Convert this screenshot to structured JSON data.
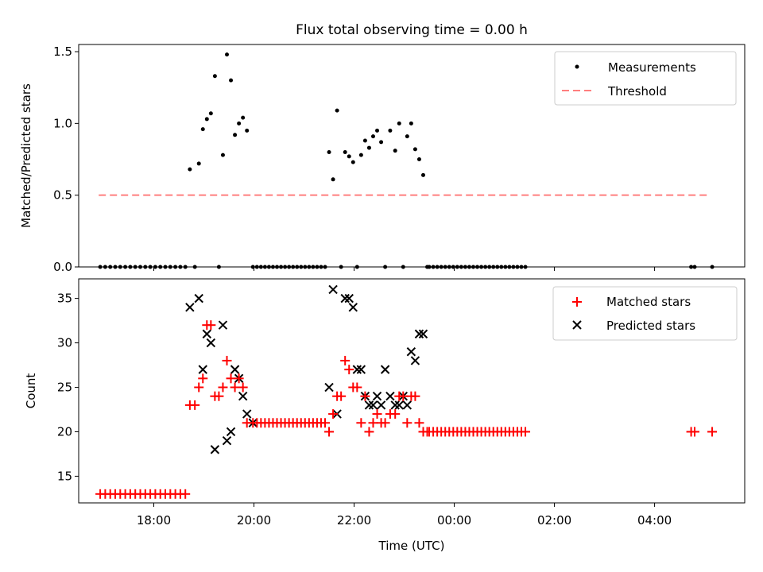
{
  "title": "Flux total observing time = 0.00 h",
  "colors": {
    "measurement": "#000000",
    "threshold": "#ff7f7f",
    "matched": "#ff0000",
    "predicted": "#000000"
  },
  "chart_data": [
    {
      "type": "scatter",
      "panel": "top",
      "title": "Flux total observing time = 0.00 h",
      "xlabel": "",
      "ylabel": "Matched/Predicted stars",
      "x_unit": "hours (UTC, beyond 24 = next day)",
      "xlim": [
        16.5,
        29.8
      ],
      "ylim": [
        0,
        1.55
      ],
      "yticks": [
        0.0,
        0.5,
        1.0,
        1.5
      ],
      "yticklabels": [
        "0.0",
        "0.5",
        "1.0",
        "1.5"
      ],
      "legend": {
        "placement": "top-right",
        "entries": [
          "Measurements",
          "Threshold"
        ]
      },
      "threshold": {
        "name": "Threshold",
        "y": 0.5,
        "x_range": [
          16.9,
          29.1
        ]
      },
      "series": [
        {
          "name": "Measurements",
          "marker": "dot",
          "x": [
            16.93,
            17.03,
            17.13,
            17.23,
            17.33,
            17.43,
            17.53,
            17.63,
            17.73,
            17.83,
            17.93,
            18.03,
            18.13,
            18.23,
            18.33,
            18.43,
            18.53,
            18.63,
            18.72,
            18.82,
            18.9,
            18.98,
            19.06,
            19.14,
            19.22,
            19.3,
            19.38,
            19.46,
            19.54,
            19.62,
            19.7,
            19.78,
            19.86,
            19.98,
            20.06,
            20.14,
            20.22,
            20.3,
            20.38,
            20.46,
            20.54,
            20.62,
            20.7,
            20.78,
            20.86,
            20.94,
            21.02,
            21.1,
            21.18,
            21.26,
            21.34,
            21.42,
            21.5,
            21.58,
            21.66,
            21.74,
            21.82,
            21.9,
            21.98,
            22.06,
            22.14,
            22.22,
            22.3,
            22.38,
            22.46,
            22.54,
            22.62,
            22.72,
            22.82,
            22.9,
            22.98,
            23.06,
            23.14,
            23.22,
            23.3,
            23.38,
            23.46,
            23.5,
            23.58,
            23.66,
            23.74,
            23.82,
            23.9,
            23.98,
            24.06,
            24.14,
            24.22,
            24.3,
            24.38,
            24.46,
            24.54,
            24.62,
            24.7,
            24.78,
            24.86,
            24.94,
            25.02,
            25.1,
            25.18,
            25.26,
            25.34,
            25.42,
            28.73,
            28.8,
            29.15
          ],
          "y": [
            0,
            0,
            0,
            0,
            0,
            0,
            0,
            0,
            0,
            0,
            0,
            0,
            0,
            0,
            0,
            0,
            0,
            0,
            0.68,
            0,
            0.72,
            0.96,
            1.03,
            1.07,
            1.33,
            0,
            0.78,
            1.48,
            1.3,
            0.92,
            1.0,
            1.04,
            0.95,
            0,
            0,
            0,
            0,
            0,
            0,
            0,
            0,
            0,
            0,
            0,
            0,
            0,
            0,
            0,
            0,
            0,
            0,
            0,
            0.8,
            0.61,
            1.09,
            0,
            0.8,
            0.77,
            0.73,
            0,
            0.78,
            0.88,
            0.83,
            0.91,
            0.95,
            0.87,
            0,
            0.95,
            0.81,
            1.0,
            0,
            0.91,
            1.0,
            0.82,
            0.75,
            0.64,
            0,
            0,
            0,
            0,
            0,
            0,
            0,
            0,
            0,
            0,
            0,
            0,
            0,
            0,
            0,
            0,
            0,
            0,
            0,
            0,
            0,
            0,
            0,
            0,
            0,
            0,
            0,
            0,
            0
          ]
        }
      ]
    },
    {
      "type": "scatter",
      "panel": "bottom",
      "xlabel": "Time (UTC)",
      "ylabel": "Count",
      "x_unit": "hours (UTC, beyond 24 = next day)",
      "xlim": [
        16.5,
        29.8
      ],
      "ylim": [
        12,
        37.2
      ],
      "xticks": [
        18,
        20,
        22,
        24,
        26,
        28
      ],
      "xticklabels": [
        "18:00",
        "20:00",
        "22:00",
        "00:00",
        "02:00",
        "04:00"
      ],
      "yticks": [
        15,
        20,
        25,
        30,
        35
      ],
      "yticklabels": [
        "15",
        "20",
        "25",
        "30",
        "35"
      ],
      "legend": {
        "placement": "top-right",
        "entries": [
          "Matched stars",
          "Predicted stars"
        ]
      },
      "series": [
        {
          "name": "Matched stars",
          "marker": "plus",
          "x": [
            16.93,
            17.03,
            17.13,
            17.23,
            17.33,
            17.43,
            17.53,
            17.63,
            17.73,
            17.83,
            17.93,
            18.03,
            18.13,
            18.23,
            18.33,
            18.43,
            18.53,
            18.63,
            18.72,
            18.82,
            18.9,
            18.98,
            19.06,
            19.14,
            19.22,
            19.3,
            19.38,
            19.46,
            19.54,
            19.62,
            19.7,
            19.78,
            19.86,
            19.98,
            20.06,
            20.14,
            20.22,
            20.3,
            20.38,
            20.46,
            20.54,
            20.62,
            20.7,
            20.78,
            20.86,
            20.94,
            21.02,
            21.1,
            21.18,
            21.26,
            21.34,
            21.42,
            21.5,
            21.58,
            21.66,
            21.74,
            21.82,
            21.9,
            21.98,
            22.06,
            22.14,
            22.22,
            22.3,
            22.38,
            22.46,
            22.54,
            22.62,
            22.72,
            22.82,
            22.9,
            22.98,
            23.06,
            23.14,
            23.22,
            23.3,
            23.38,
            23.46,
            23.5,
            23.58,
            23.66,
            23.74,
            23.82,
            23.9,
            23.98,
            24.06,
            24.14,
            24.22,
            24.3,
            24.38,
            24.46,
            24.54,
            24.62,
            24.7,
            24.78,
            24.86,
            24.94,
            25.02,
            25.1,
            25.18,
            25.26,
            25.34,
            25.42,
            28.73,
            28.8,
            29.15
          ],
          "y": [
            13,
            13,
            13,
            13,
            13,
            13,
            13,
            13,
            13,
            13,
            13,
            13,
            13,
            13,
            13,
            13,
            13,
            13,
            23,
            23,
            25,
            26,
            32,
            32,
            24,
            24,
            25,
            28,
            26,
            25,
            26,
            25,
            21,
            21,
            21,
            21,
            21,
            21,
            21,
            21,
            21,
            21,
            21,
            21,
            21,
            21,
            21,
            21,
            21,
            21,
            21,
            21,
            20,
            22,
            24,
            24,
            28,
            27,
            25,
            25,
            21,
            24,
            20,
            21,
            22,
            21,
            21,
            22,
            22,
            24,
            24,
            21,
            24,
            24,
            21,
            20,
            20,
            20,
            20,
            20,
            20,
            20,
            20,
            20,
            20,
            20,
            20,
            20,
            20,
            20,
            20,
            20,
            20,
            20,
            20,
            20,
            20,
            20,
            20,
            20,
            20,
            20,
            20,
            20,
            20
          ]
        },
        {
          "name": "Predicted stars",
          "marker": "x",
          "x": [
            18.72,
            18.9,
            18.98,
            19.06,
            19.14,
            19.22,
            19.38,
            19.46,
            19.54,
            19.62,
            19.7,
            19.78,
            19.86,
            19.98,
            21.5,
            21.58,
            21.66,
            21.82,
            21.9,
            21.98,
            22.06,
            22.14,
            22.22,
            22.3,
            22.38,
            22.46,
            22.54,
            22.62,
            22.72,
            22.82,
            22.9,
            22.98,
            23.06,
            23.14,
            23.22,
            23.3,
            23.38
          ],
          "y": [
            34,
            35,
            27,
            31,
            30,
            18,
            32,
            19,
            20,
            27,
            26,
            24,
            22,
            21,
            25,
            36,
            22,
            35,
            35,
            34,
            27,
            27,
            24,
            23,
            23,
            24,
            23,
            27,
            24,
            23,
            23,
            24,
            23,
            29,
            28,
            31,
            31
          ]
        }
      ]
    }
  ]
}
